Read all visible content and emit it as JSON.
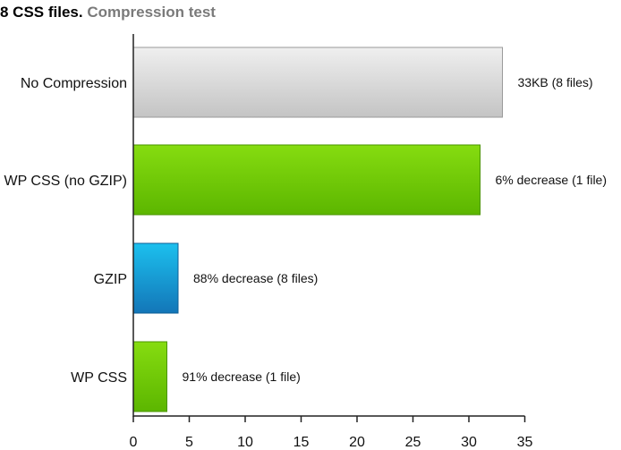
{
  "title": {
    "main": "8 CSS files.",
    "sub": "Compression test"
  },
  "colors": {
    "gray": "#d0d0d0",
    "green": "#6cc800",
    "blue": "#1a9ad6",
    "axis": "#222222"
  },
  "chart_data": {
    "type": "bar",
    "orientation": "horizontal",
    "title": "8 CSS files. Compression test",
    "categories": [
      "No Compression",
      "WP CSS (no GZIP)",
      "GZIP",
      "WP CSS"
    ],
    "values": [
      33,
      31,
      4,
      3
    ],
    "bar_colors": [
      "gray",
      "green",
      "blue",
      "green"
    ],
    "data_labels": [
      "33KB (8 files)",
      "6% decrease (1 file)",
      "88% decrease (8 files)",
      "91% decrease (1 file)"
    ],
    "xlim": [
      0,
      35
    ],
    "xticks": [
      0,
      5,
      10,
      15,
      20,
      25,
      30,
      35
    ],
    "xlabel": "",
    "ylabel": "",
    "grid": false
  }
}
